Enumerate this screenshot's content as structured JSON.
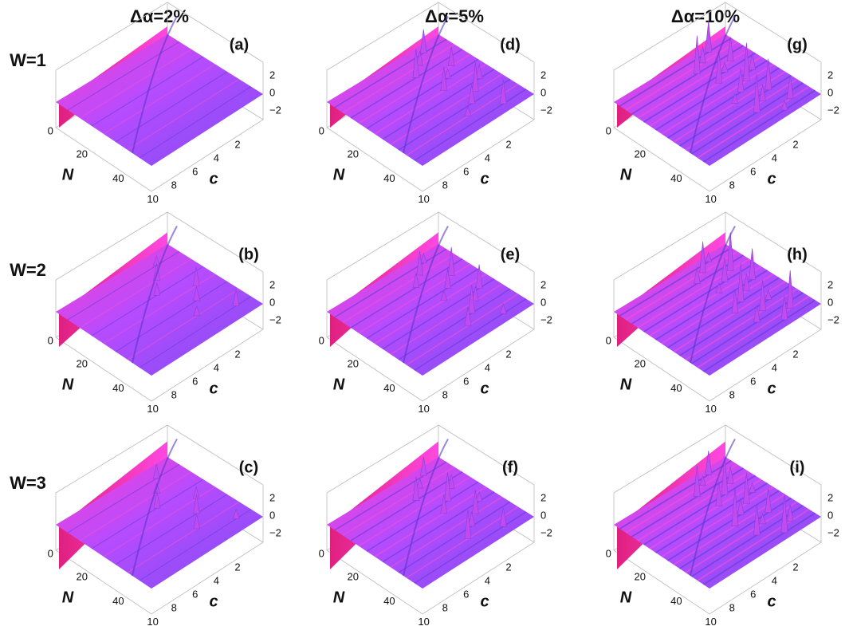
{
  "columns": [
    "Δα=2%",
    "Δα=5%",
    "Δα=10%"
  ],
  "rows": [
    "W=1",
    "W=2",
    "W=3"
  ],
  "panels": [
    [
      "(a)",
      "(b)",
      "(c)"
    ],
    [
      "(d)",
      "(e)",
      "(f)"
    ],
    [
      "(g)",
      "(h)",
      "(i)"
    ]
  ],
  "axes": {
    "n_label": "N",
    "n_ticks": [
      "0",
      "20",
      "40"
    ],
    "c_label": "c",
    "c_ticks": [
      "10",
      "8",
      "6",
      "4",
      "2"
    ],
    "z_ticks": [
      "2",
      "0",
      "−2"
    ]
  }
}
